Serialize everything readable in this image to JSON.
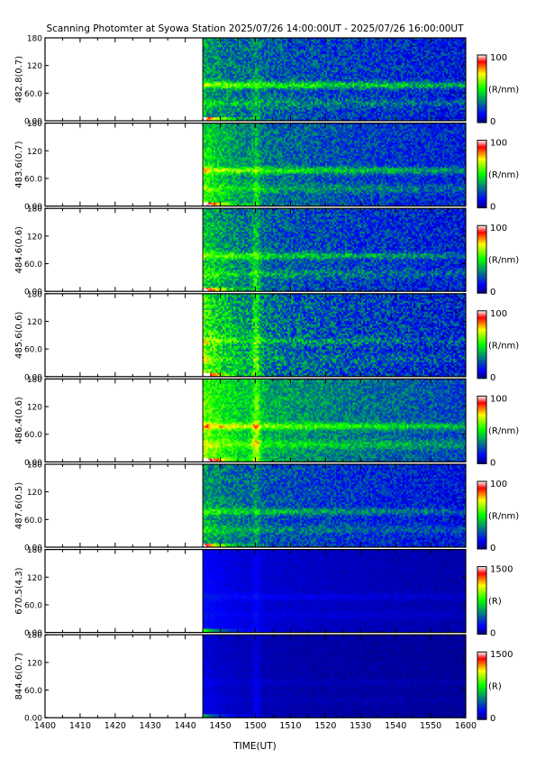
{
  "chart_data": {
    "type": "heatmap",
    "title": "Scanning Photomter at Syowa Station  2025/07/26 14:00:00UT - 2025/07/26 16:00:00UT",
    "xlabel": "TIME(UT)",
    "x_tick_labels": [
      "1400",
      "1410",
      "1420",
      "1430",
      "1440",
      "1450",
      "1500",
      "1510",
      "1520",
      "1530",
      "1540",
      "1550",
      "1600"
    ],
    "xlim": [
      "1400",
      "1600"
    ],
    "data_start": "1445",
    "y_tick_labels": [
      "0.00",
      "60.0",
      "120",
      "180"
    ],
    "ylim": [
      0,
      180
    ],
    "colormap": [
      "#00007a",
      "#0000ff",
      "#00ff00",
      "#ffff00",
      "#ff0000",
      "#ffffff"
    ],
    "panels": [
      {
        "ylabel": "482.8(0.7)",
        "unit": "(R/nm)",
        "cbar_min": "0",
        "cbar_max": "100"
      },
      {
        "ylabel": "483.6(0.7)",
        "unit": "(R/nm)",
        "cbar_min": "0",
        "cbar_max": "100"
      },
      {
        "ylabel": "484.6(0.6)",
        "unit": "(R/nm)",
        "cbar_min": "0",
        "cbar_max": "100"
      },
      {
        "ylabel": "485.6(0.6)",
        "unit": "(R/nm)",
        "cbar_min": "0",
        "cbar_max": "100"
      },
      {
        "ylabel": "486.4(0.6)",
        "unit": "(R/nm)",
        "cbar_min": "0",
        "cbar_max": "100"
      },
      {
        "ylabel": "487.6(0.5)",
        "unit": "(R/nm)",
        "cbar_min": "0",
        "cbar_max": "100"
      },
      {
        "ylabel": "670.5(4.3)",
        "unit": "(R)",
        "cbar_min": "0",
        "cbar_max": "1500"
      },
      {
        "ylabel": "844.6(0.7)",
        "unit": "(R)",
        "cbar_min": "0",
        "cbar_max": "1500"
      }
    ]
  }
}
